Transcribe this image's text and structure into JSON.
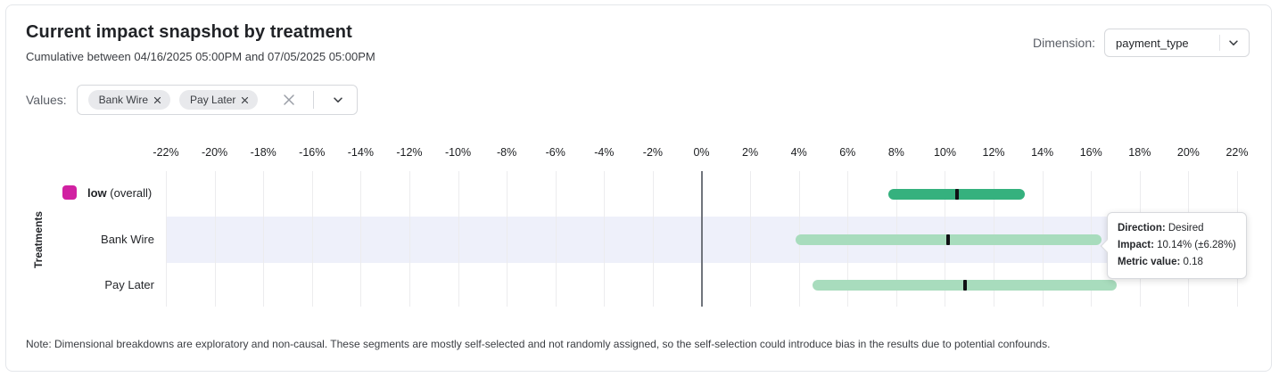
{
  "header": {
    "title": "Current impact snapshot by treatment",
    "subtitle": "Cumulative between 04/16/2025 05:00PM and 07/05/2025 05:00PM"
  },
  "dimension": {
    "label": "Dimension:",
    "value": "payment_type"
  },
  "values_filter": {
    "label": "Values:",
    "chips": [
      {
        "label": "Bank Wire"
      },
      {
        "label": "Pay Later"
      }
    ]
  },
  "chart_data": {
    "type": "bar",
    "subtype": "horizontal_interval_ranges",
    "title": "Current impact snapshot by treatment",
    "ylabel": "Treatments",
    "x_axis": {
      "min": -22,
      "max": 22,
      "tick_step": 2,
      "unit": "%",
      "tick_labels": [
        "-22%",
        "-20%",
        "-18%",
        "-16%",
        "-14%",
        "-12%",
        "-10%",
        "-8%",
        "-6%",
        "-4%",
        "-2%",
        "0%",
        "2%",
        "4%",
        "6%",
        "8%",
        "10%",
        "12%",
        "14%",
        "16%",
        "18%",
        "20%",
        "22%"
      ]
    },
    "grid": true,
    "legend": {
      "swatch_color": "#d121a2",
      "name": "low",
      "suffix": " (overall)"
    },
    "marker_color": "#101114",
    "highlight_band_color": "#eef0fa",
    "rows": [
      {
        "label": "low (overall)",
        "impact_pct": 10.48,
        "ci_low_pct": 7.68,
        "ci_high_pct": 13.28,
        "bar_color": "#35b17e",
        "highlighted": false,
        "is_overall": true
      },
      {
        "label": "Bank Wire",
        "impact_pct": 10.14,
        "ci_low_pct": 3.86,
        "ci_high_pct": 16.42,
        "bar_color": "#a8dcbd",
        "highlighted": true,
        "is_overall": false
      },
      {
        "label": "Pay Later",
        "impact_pct": 10.81,
        "ci_low_pct": 4.55,
        "ci_high_pct": 17.07,
        "bar_color": "#a8dcbd",
        "highlighted": false,
        "is_overall": false
      }
    ]
  },
  "tooltip": {
    "direction_label": "Direction:",
    "direction_value": "Desired",
    "impact_label": "Impact:",
    "impact_value": "10.14% (±6.28%)",
    "metric_label": "Metric value:",
    "metric_value": "0.18"
  },
  "note": "Note: Dimensional breakdowns are exploratory and non-causal. These segments are mostly self-selected and not randomly assigned, so the self-selection could introduce bias in the results due to potential confounds."
}
